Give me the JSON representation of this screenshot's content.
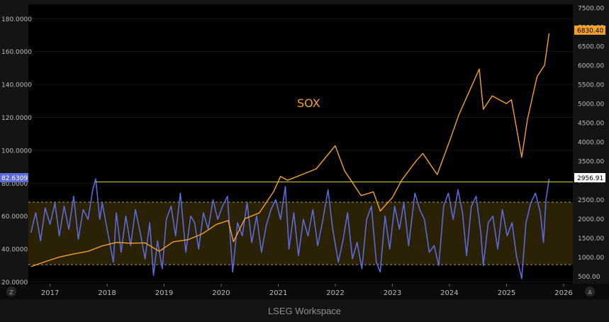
{
  "footer": {
    "text": "LSEG Workspace"
  },
  "corner_buttons": {
    "left": "Z",
    "right": "A"
  },
  "chart_data": {
    "type": "line",
    "annotation": "SOX",
    "x_ticks": [
      "2017",
      "2018",
      "2019",
      "2020",
      "2021",
      "2022",
      "2023",
      "2024",
      "2025",
      "2026"
    ],
    "left_axis": {
      "ticks": [
        "20.0000",
        "40.0000",
        "60.0000",
        "80.0000",
        "100.0000",
        "120.0000",
        "140.0000",
        "160.0000",
        "180.0000"
      ],
      "range": [
        20,
        185
      ]
    },
    "right_axis": {
      "ticks": [
        "500.00",
        "1000.00",
        "1500.00",
        "2000.00",
        "2500.00",
        "3000.00",
        "3500.00",
        "4000.00",
        "4500.00",
        "5000.00",
        "5500.00",
        "6000.00",
        "6500.00",
        "7000.00",
        "7500.00"
      ],
      "range": [
        250,
        7500
      ]
    },
    "current_values": {
      "oscillator": "82.6309",
      "level_line": "2956.91",
      "sox_last": "6830.40"
    },
    "band": {
      "upper": 68.5,
      "lower": 30.5
    },
    "colors": {
      "sox": "#f2a12c",
      "oscillator": "#5b6ad8",
      "band_fill": "#2a2107",
      "level_line": "#d4d41e",
      "background": "#000000"
    },
    "series": [
      {
        "name": "SOX",
        "axis": "right",
        "points": [
          [
            "2016-09-01",
            750
          ],
          [
            "2016-12-01",
            880
          ],
          [
            "2017-03-01",
            1000
          ],
          [
            "2017-06-01",
            1080
          ],
          [
            "2017-09-01",
            1150
          ],
          [
            "2017-12-01",
            1290
          ],
          [
            "2018-03-01",
            1380
          ],
          [
            "2018-06-01",
            1360
          ],
          [
            "2018-09-01",
            1370
          ],
          [
            "2018-12-01",
            1150
          ],
          [
            "2019-03-01",
            1400
          ],
          [
            "2019-06-01",
            1450
          ],
          [
            "2019-09-01",
            1600
          ],
          [
            "2019-12-01",
            1850
          ],
          [
            "2020-02-15",
            1950
          ],
          [
            "2020-03-20",
            1400
          ],
          [
            "2020-06-01",
            2000
          ],
          [
            "2020-09-01",
            2150
          ],
          [
            "2020-12-01",
            2700
          ],
          [
            "2021-01-15",
            3100
          ],
          [
            "2021-03-01",
            3000
          ],
          [
            "2021-06-01",
            3150
          ],
          [
            "2021-09-01",
            3300
          ],
          [
            "2021-12-31",
            3900
          ],
          [
            "2022-03-01",
            3250
          ],
          [
            "2022-06-15",
            2600
          ],
          [
            "2022-09-01",
            2700
          ],
          [
            "2022-10-15",
            2200
          ],
          [
            "2023-01-01",
            2550
          ],
          [
            "2023-03-01",
            3000
          ],
          [
            "2023-06-01",
            3500
          ],
          [
            "2023-07-15",
            3700
          ],
          [
            "2023-10-15",
            3150
          ],
          [
            "2023-12-31",
            4000
          ],
          [
            "2024-03-01",
            4700
          ],
          [
            "2024-07-10",
            5900
          ],
          [
            "2024-08-05",
            4850
          ],
          [
            "2024-10-01",
            5200
          ],
          [
            "2024-12-31",
            5000
          ],
          [
            "2025-02-01",
            5100
          ],
          [
            "2025-04-08",
            3600
          ],
          [
            "2025-05-15",
            4600
          ],
          [
            "2025-07-15",
            5700
          ],
          [
            "2025-09-01",
            6000
          ],
          [
            "2025-09-30",
            6830
          ]
        ]
      },
      {
        "name": "Oscillator",
        "axis": "left",
        "points": [
          [
            "2016-09-01",
            50
          ],
          [
            "2016-10-01",
            62
          ],
          [
            "2016-11-01",
            45
          ],
          [
            "2016-12-01",
            65
          ],
          [
            "2017-01-01",
            55
          ],
          [
            "2017-02-01",
            68
          ],
          [
            "2017-03-01",
            48
          ],
          [
            "2017-04-01",
            66
          ],
          [
            "2017-05-01",
            52
          ],
          [
            "2017-06-01",
            72
          ],
          [
            "2017-07-01",
            46
          ],
          [
            "2017-08-01",
            64
          ],
          [
            "2017-09-01",
            58
          ],
          [
            "2017-10-01",
            76
          ],
          [
            "2017-10-20",
            82.6
          ],
          [
            "2017-11-15",
            58
          ],
          [
            "2017-12-01",
            68
          ],
          [
            "2018-01-15",
            45
          ],
          [
            "2018-02-10",
            32
          ],
          [
            "2018-03-01",
            62
          ],
          [
            "2018-04-01",
            38
          ],
          [
            "2018-05-01",
            60
          ],
          [
            "2018-06-01",
            42
          ],
          [
            "2018-07-01",
            64
          ],
          [
            "2018-08-01",
            50
          ],
          [
            "2018-09-01",
            34
          ],
          [
            "2018-10-01",
            56
          ],
          [
            "2018-10-25",
            24
          ],
          [
            "2018-11-20",
            45
          ],
          [
            "2018-12-20",
            28
          ],
          [
            "2019-01-15",
            58
          ],
          [
            "2019-02-15",
            66
          ],
          [
            "2019-03-15",
            48
          ],
          [
            "2019-04-15",
            74
          ],
          [
            "2019-05-20",
            38
          ],
          [
            "2019-06-20",
            60
          ],
          [
            "2019-07-15",
            56
          ],
          [
            "2019-08-10",
            40
          ],
          [
            "2019-09-10",
            62
          ],
          [
            "2019-10-10",
            52
          ],
          [
            "2019-11-10",
            70
          ],
          [
            "2019-12-10",
            58
          ],
          [
            "2020-01-10",
            66
          ],
          [
            "2020-02-10",
            72
          ],
          [
            "2020-03-15",
            26
          ],
          [
            "2020-04-15",
            56
          ],
          [
            "2020-05-15",
            48
          ],
          [
            "2020-06-15",
            68
          ],
          [
            "2020-07-15",
            44
          ],
          [
            "2020-08-15",
            60
          ],
          [
            "2020-09-15",
            38
          ],
          [
            "2020-10-15",
            54
          ],
          [
            "2020-11-15",
            64
          ],
          [
            "2020-12-15",
            70
          ],
          [
            "2021-01-15",
            58
          ],
          [
            "2021-02-15",
            78
          ],
          [
            "2021-03-10",
            40
          ],
          [
            "2021-04-10",
            62
          ],
          [
            "2021-05-10",
            36
          ],
          [
            "2021-06-10",
            58
          ],
          [
            "2021-07-10",
            48
          ],
          [
            "2021-08-10",
            64
          ],
          [
            "2021-09-10",
            42
          ],
          [
            "2021-10-10",
            56
          ],
          [
            "2021-11-15",
            76
          ],
          [
            "2021-12-15",
            52
          ],
          [
            "2022-01-20",
            32
          ],
          [
            "2022-02-20",
            46
          ],
          [
            "2022-03-20",
            62
          ],
          [
            "2022-04-20",
            34
          ],
          [
            "2022-05-20",
            44
          ],
          [
            "2022-06-20",
            28
          ],
          [
            "2022-07-20",
            58
          ],
          [
            "2022-08-20",
            66
          ],
          [
            "2022-09-20",
            32
          ],
          [
            "2022-10-15",
            26
          ],
          [
            "2022-11-15",
            60
          ],
          [
            "2022-12-15",
            40
          ],
          [
            "2023-01-15",
            66
          ],
          [
            "2023-02-15",
            52
          ],
          [
            "2023-03-15",
            68
          ],
          [
            "2023-04-15",
            42
          ],
          [
            "2023-05-25",
            74
          ],
          [
            "2023-06-25",
            64
          ],
          [
            "2023-07-25",
            58
          ],
          [
            "2023-08-25",
            38
          ],
          [
            "2023-09-25",
            42
          ],
          [
            "2023-10-25",
            30
          ],
          [
            "2023-11-25",
            66
          ],
          [
            "2023-12-25",
            74
          ],
          [
            "2024-01-25",
            58
          ],
          [
            "2024-02-25",
            76
          ],
          [
            "2024-03-25",
            62
          ],
          [
            "2024-04-20",
            36
          ],
          [
            "2024-05-20",
            66
          ],
          [
            "2024-06-20",
            72
          ],
          [
            "2024-07-20",
            50
          ],
          [
            "2024-08-05",
            30
          ],
          [
            "2024-09-05",
            56
          ],
          [
            "2024-10-05",
            60
          ],
          [
            "2024-11-05",
            40
          ],
          [
            "2024-12-05",
            64
          ],
          [
            "2025-01-05",
            48
          ],
          [
            "2025-02-05",
            56
          ],
          [
            "2025-03-05",
            36
          ],
          [
            "2025-04-08",
            22
          ],
          [
            "2025-05-05",
            56
          ],
          [
            "2025-06-05",
            68
          ],
          [
            "2025-07-05",
            74
          ],
          [
            "2025-08-05",
            62
          ],
          [
            "2025-08-25",
            44
          ],
          [
            "2025-09-10",
            70
          ],
          [
            "2025-09-30",
            82.6
          ]
        ]
      }
    ]
  }
}
